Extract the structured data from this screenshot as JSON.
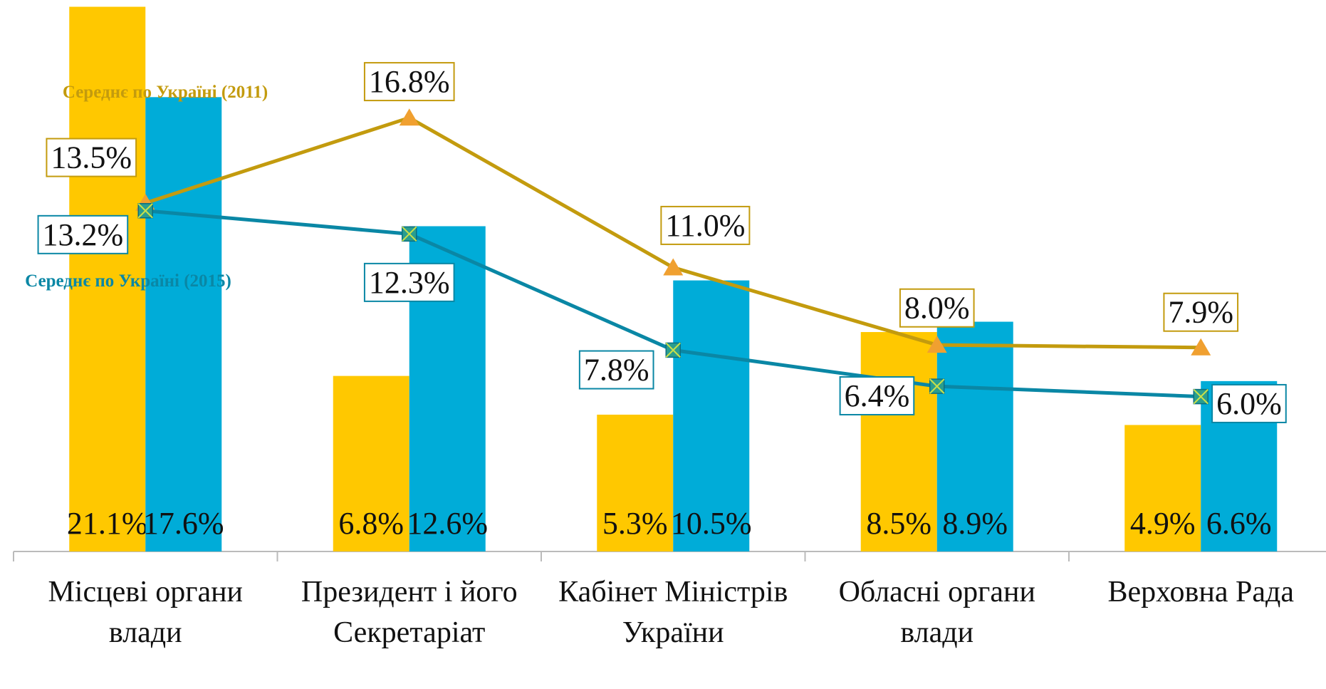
{
  "chart_data": {
    "type": "bar",
    "categories": [
      "Місцеві органи влади",
      "Президент і його Секретаріат",
      "Кабінет Міністрів України",
      "Обласні органи влади",
      "Верховна Рада"
    ],
    "series": [
      {
        "color": "#ffc800",
        "values": [
          21.1,
          6.8,
          5.3,
          8.5,
          4.9
        ],
        "value_labels": [
          "21.1%",
          "6.8%",
          "5.3%",
          "8.5%",
          "4.9%"
        ]
      },
      {
        "color": "#00acd8",
        "values": [
          17.6,
          12.6,
          10.5,
          8.9,
          6.6
        ],
        "value_labels": [
          "17.6%",
          "12.6%",
          "10.5%",
          "8.9%",
          "6.6%"
        ]
      },
      {
        "name": "Середнє по Україні (2011)",
        "type": "line",
        "color": "#c39b0e",
        "marker": "triangle",
        "marker_color": "#f0a030",
        "values": [
          13.5,
          16.8,
          11.0,
          8.0,
          7.9
        ],
        "value_labels": [
          "13.5%",
          "16.8%",
          "11.0%",
          "8.0%",
          "7.9%"
        ]
      },
      {
        "name": "Середнє по Україні (2015)",
        "type": "line",
        "color": "#0a87a5",
        "marker": "x-square",
        "marker_color": "#2a9d8f",
        "values": [
          13.2,
          12.3,
          7.8,
          6.4,
          6.0
        ],
        "value_labels": [
          "13.2%",
          "12.3%",
          "7.8%",
          "6.4%",
          "6.0%"
        ]
      }
    ]
  }
}
